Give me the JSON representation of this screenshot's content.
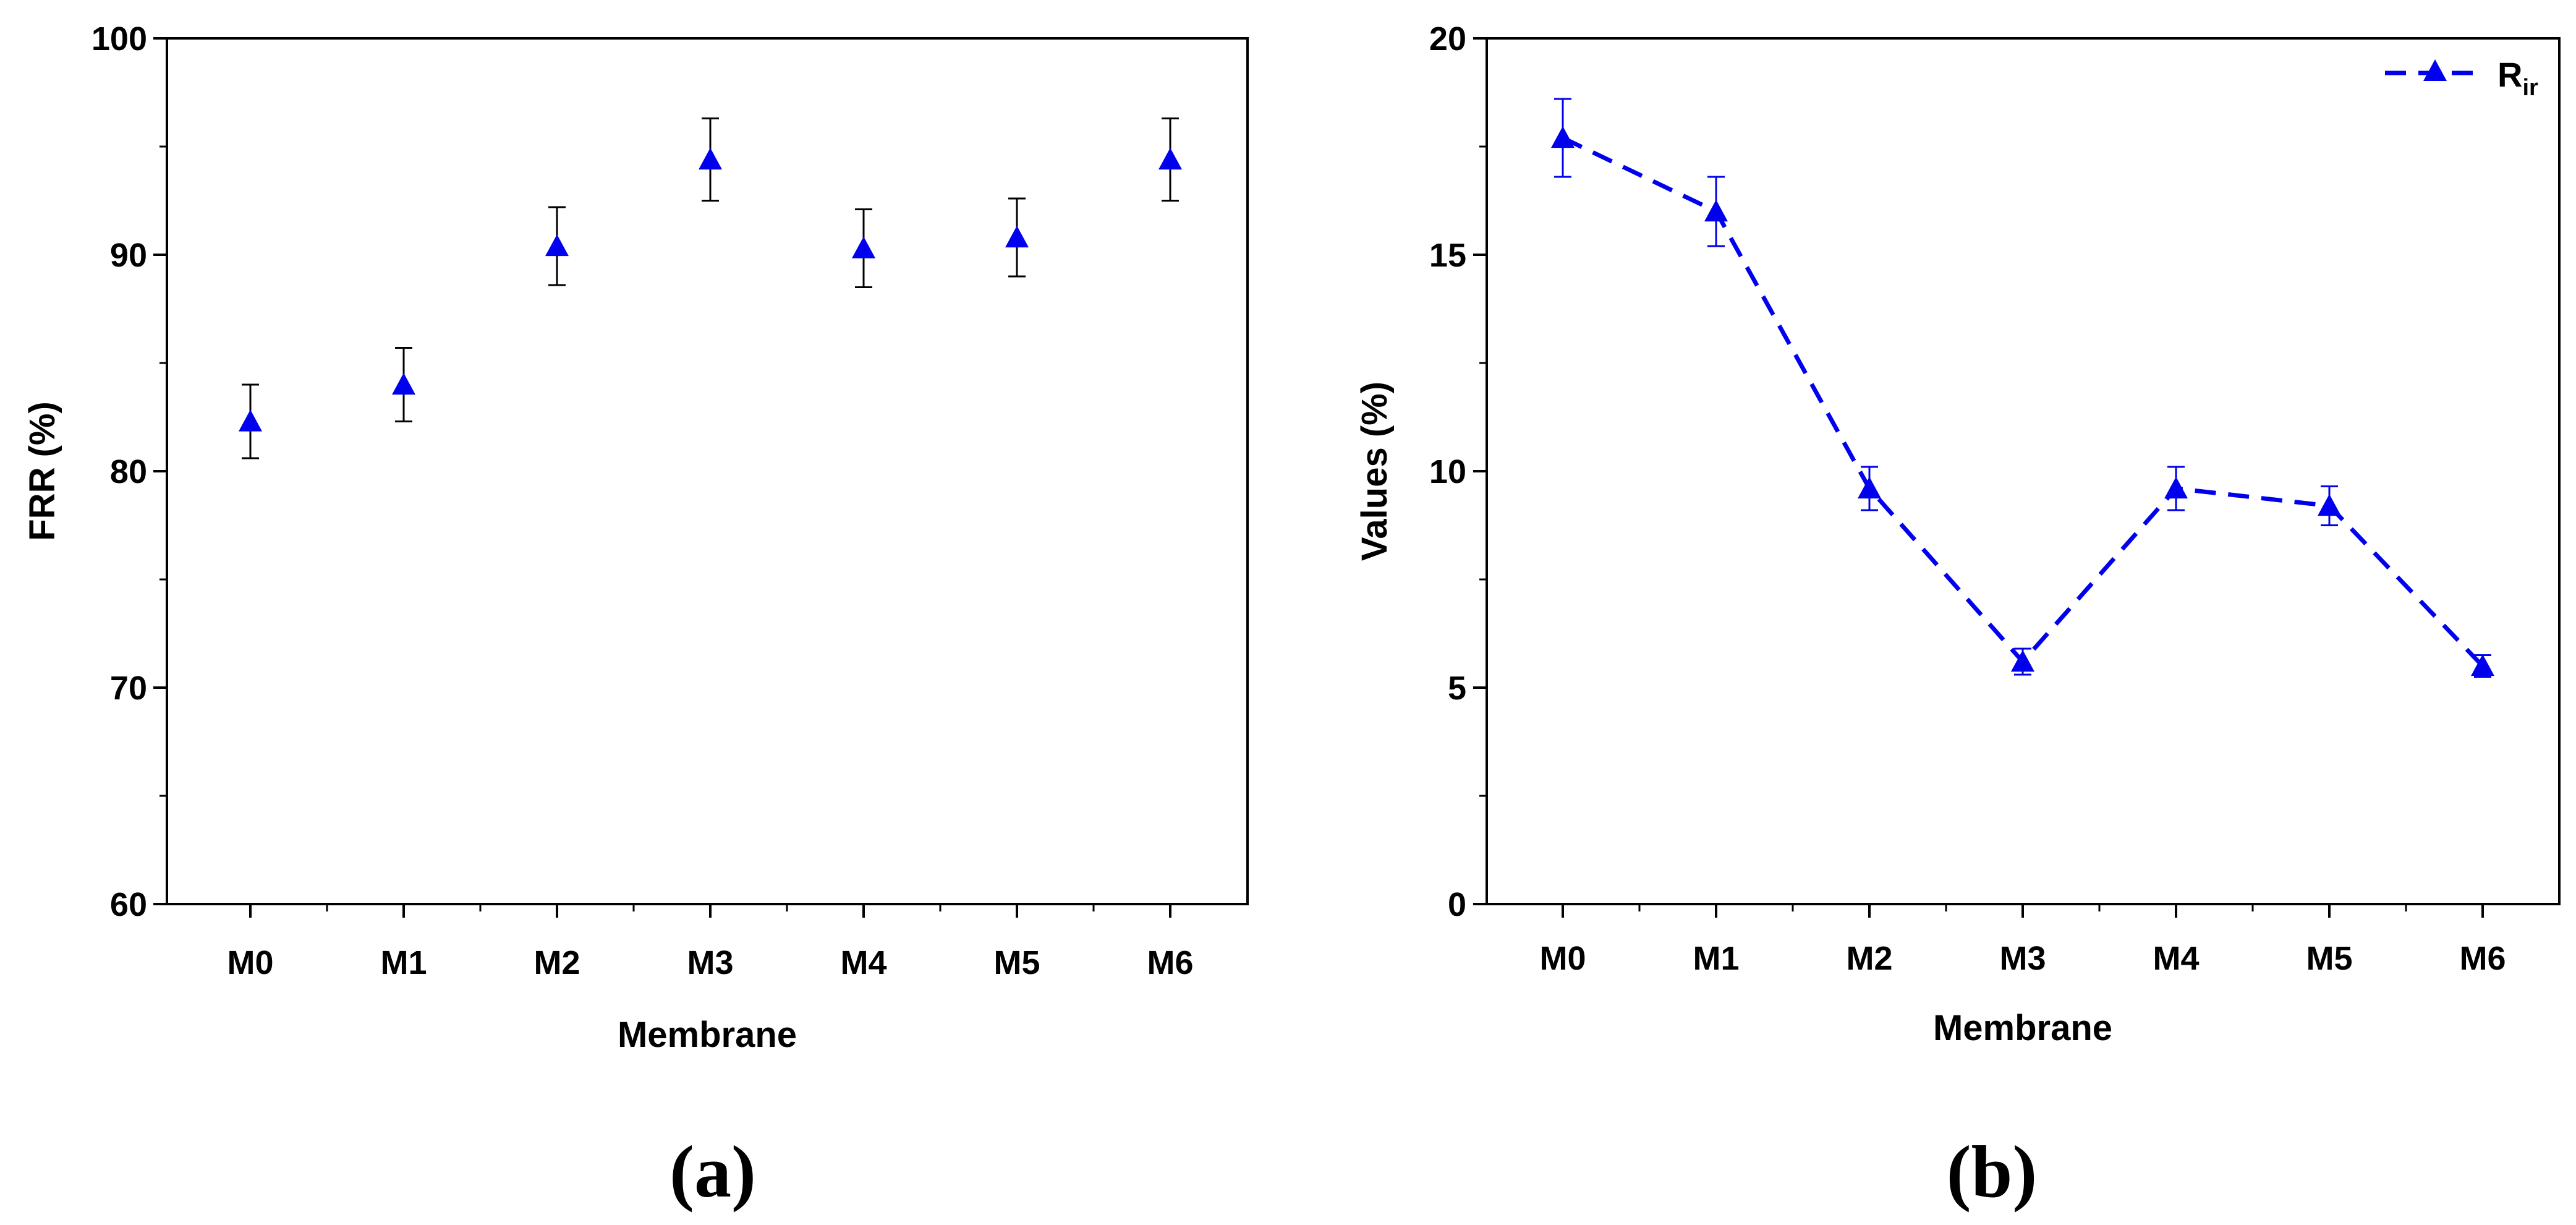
{
  "chart_data": [
    {
      "type": "scatter",
      "panel_label": "(a)",
      "xlabel": "Membrane",
      "ylabel": "FRR (%)",
      "ylim": [
        60,
        100
      ],
      "yticks": [
        60,
        70,
        80,
        90,
        100
      ],
      "categories": [
        "M0",
        "M1",
        "M2",
        "M3",
        "M4",
        "M5",
        "M6"
      ],
      "values": [
        82.3,
        84.0,
        90.4,
        94.4,
        90.3,
        90.8,
        94.4
      ],
      "errors": [
        1.7,
        1.7,
        1.8,
        1.9,
        1.8,
        1.8,
        1.9
      ],
      "marker_color": "#0000ee",
      "errorbar_color": "#000000"
    },
    {
      "type": "line",
      "panel_label": "(b)",
      "xlabel": "Membrane",
      "ylabel": "Values (%)",
      "ylim": [
        0,
        20
      ],
      "yticks": [
        0,
        5,
        10,
        15,
        20
      ],
      "categories": [
        "M0",
        "M1",
        "M2",
        "M3",
        "M4",
        "M5",
        "M6"
      ],
      "series": [
        {
          "name": "R",
          "name_sub": "ir",
          "values": [
            17.7,
            16.0,
            9.6,
            5.6,
            9.6,
            9.2,
            5.5
          ],
          "errors": [
            0.9,
            0.8,
            0.5,
            0.3,
            0.5,
            0.45,
            0.25
          ],
          "color": "#0000ee",
          "line_style": "dashed"
        }
      ],
      "legend_position": "top-right"
    }
  ]
}
